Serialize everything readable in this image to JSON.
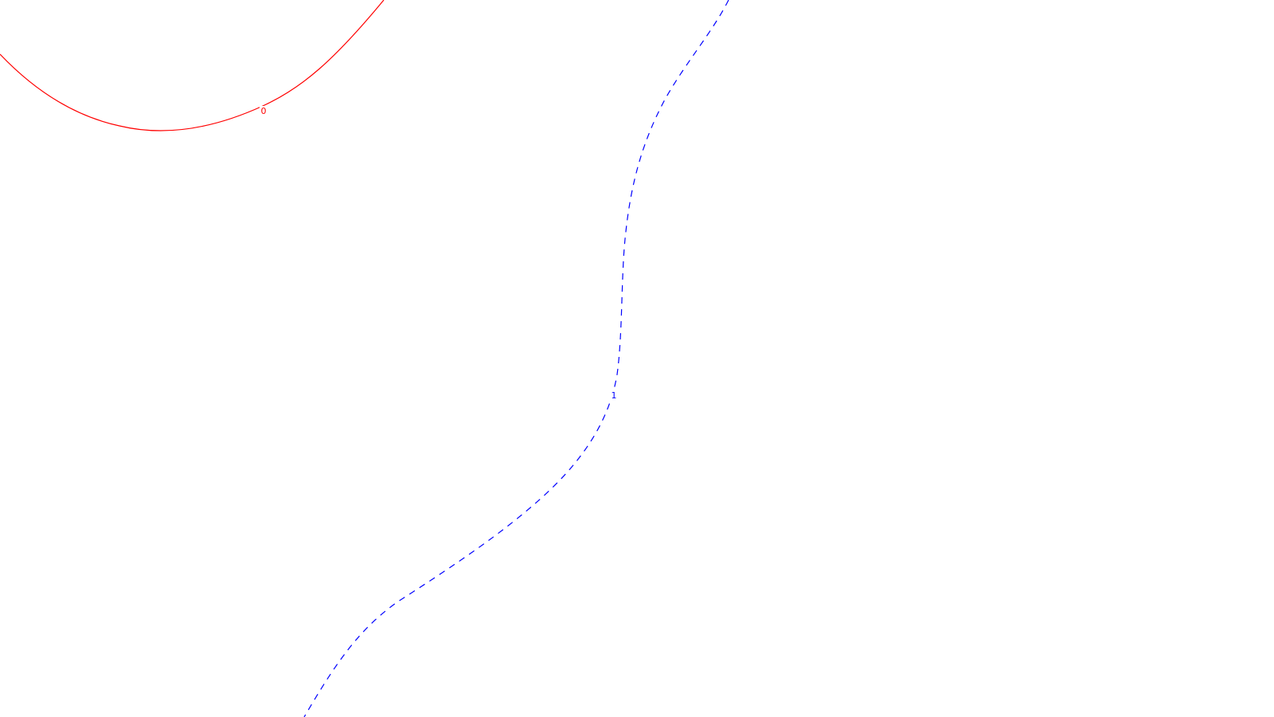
{
  "chart_data": {
    "type": "contour",
    "title": "",
    "xlabel": "",
    "ylabel": "",
    "grid": false,
    "legend": "none",
    "series": [
      {
        "level": "0",
        "label": "0",
        "color": "#ff0000",
        "line_style": "solid"
      },
      {
        "level": "1",
        "label": "1",
        "color": "#0000ff",
        "line_style": "dashed"
      }
    ]
  }
}
